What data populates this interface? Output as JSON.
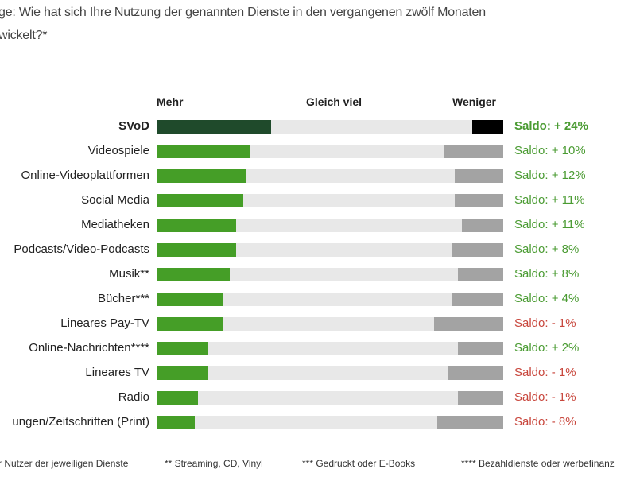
{
  "question": {
    "line1": "ge: Wie hat sich Ihre Nutzung der genannten Dienste in den vergangenen zwölf Monaten",
    "line2": "wickelt?*"
  },
  "chart_data": {
    "type": "bar",
    "subtype": "diverging-stacked-horizontal",
    "headers": {
      "more": "Mehr",
      "same": "Gleich viel",
      "less": "Weniger"
    },
    "unit": "%",
    "xlim": [
      0,
      100
    ],
    "colors": {
      "more": "#459e27",
      "more_highlight": "#1f4a2b",
      "less": "#a3a3a3",
      "less_highlight": "#000000",
      "same": "#e8e8e8",
      "saldo_positive": "#4a9b32",
      "saldo_negative": "#c8463c"
    },
    "categories": [
      "SVoD",
      "Videospiele",
      "Online-Videoplattformen",
      "Social Media",
      "Mediatheken",
      "Podcasts/Video-Podcasts",
      "Musik**",
      "Bücher***",
      "Lineares Pay-TV",
      "Online-Nachrichten****",
      "Lineares TV",
      "Radio",
      "ungen/Zeitschriften (Print)"
    ],
    "series": [
      {
        "name": "Mehr",
        "values": [
          33,
          27,
          26,
          25,
          23,
          23,
          21,
          19,
          19,
          15,
          15,
          12,
          11
        ]
      },
      {
        "name": "Weniger",
        "values": [
          9,
          17,
          14,
          14,
          12,
          15,
          13,
          15,
          20,
          13,
          16,
          13,
          19
        ]
      }
    ],
    "saldo_labels": [
      "Saldo: + 24%",
      "Saldo: + 10%",
      "Saldo: + 12%",
      "Saldo: + 11%",
      "Saldo: + 11%",
      "Saldo: + 8%",
      "Saldo: + 8%",
      "Saldo: + 4%",
      "Saldo: - 1%",
      "Saldo: + 2%",
      "Saldo: - 1%",
      "Saldo: - 1%",
      "Saldo: - 8%"
    ],
    "saldo_values": [
      24,
      10,
      12,
      11,
      11,
      8,
      8,
      4,
      -1,
      2,
      -1,
      -1,
      -8
    ],
    "highlighted": "SVoD"
  },
  "footnotes": [
    "r Nutzer der jeweiligen Dienste",
    "** Streaming, CD, Vinyl",
    "*** Gedruckt oder E-Books",
    "**** Bezahldienste oder werbefinanz"
  ]
}
